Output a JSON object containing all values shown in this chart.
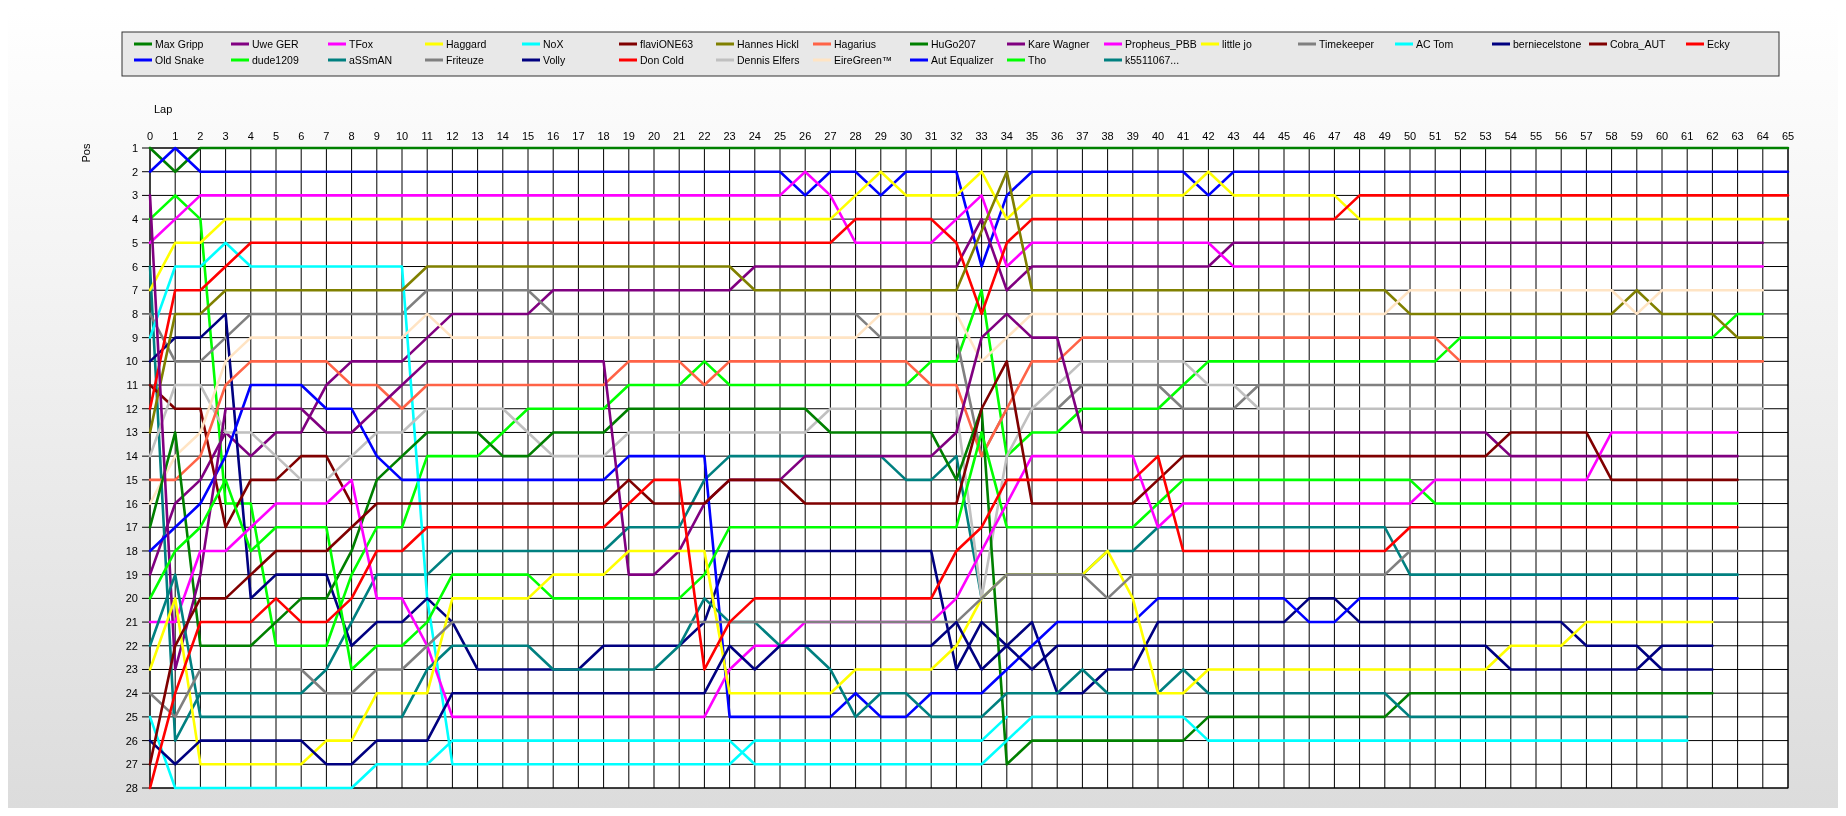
{
  "chart_data": {
    "type": "line",
    "xlabel": "Lap",
    "ylabel": "Pos",
    "xlim": [
      0,
      65
    ],
    "ylim": [
      28,
      1
    ],
    "xticks": [
      0,
      1,
      2,
      3,
      4,
      5,
      6,
      7,
      8,
      9,
      10,
      11,
      12,
      13,
      14,
      15,
      16,
      17,
      18,
      19,
      20,
      21,
      22,
      23,
      24,
      25,
      26,
      27,
      28,
      29,
      30,
      31,
      32,
      33,
      34,
      35,
      36,
      37,
      38,
      39,
      40,
      41,
      42,
      43,
      44,
      45,
      46,
      47,
      48,
      49,
      50,
      51,
      52,
      53,
      54,
      55,
      56,
      57,
      58,
      59,
      60,
      61,
      62,
      63,
      64,
      65
    ],
    "yticks": [
      1,
      2,
      3,
      4,
      5,
      6,
      7,
      8,
      9,
      10,
      11,
      12,
      13,
      14,
      15,
      16,
      17,
      18,
      19,
      20,
      21,
      22,
      23,
      24,
      25,
      26,
      27,
      28
    ],
    "grid": true,
    "legend": "top",
    "series": [
      {
        "name": "Max Gripp",
        "color": "#008000",
        "x": [
          0,
          1,
          2,
          65
        ],
        "values": [
          1,
          2,
          1,
          1
        ]
      },
      {
        "name": "Old Snake",
        "color": "#0000ff",
        "x": [
          0,
          1,
          2,
          25,
          26,
          27,
          28,
          29,
          30,
          32,
          33,
          34,
          35,
          41,
          42,
          43,
          65
        ],
        "values": [
          2,
          1,
          2,
          2,
          3,
          2,
          2,
          3,
          2,
          2,
          6,
          3,
          2,
          2,
          3,
          2,
          2
        ]
      },
      {
        "name": "Uwe GER",
        "color": "#800080",
        "x": [
          0,
          1,
          2,
          3,
          4,
          5,
          6,
          7,
          8,
          10,
          11,
          12,
          15,
          16,
          23,
          24,
          32,
          33,
          34,
          35,
          42,
          43,
          64
        ],
        "values": [
          19,
          16,
          15,
          13,
          14,
          13,
          13,
          11,
          10,
          10,
          9,
          8,
          8,
          7,
          7,
          6,
          6,
          4,
          7,
          6,
          6,
          5,
          5
        ]
      },
      {
        "name": "dude1209",
        "color": "#00ff00",
        "x": [
          0,
          1,
          2,
          3,
          4,
          5,
          7,
          8,
          9,
          10,
          11,
          13,
          14,
          15,
          18,
          19,
          21,
          22,
          23,
          30,
          31,
          32,
          33,
          34,
          35,
          36,
          37,
          40,
          41,
          42,
          51,
          52,
          62,
          63,
          64
        ],
        "values": [
          4,
          3,
          4,
          16,
          16,
          22,
          22,
          19,
          17,
          17,
          14,
          14,
          13,
          12,
          12,
          11,
          11,
          10,
          11,
          11,
          10,
          10,
          7,
          14,
          13,
          13,
          12,
          12,
          11,
          10,
          10,
          9,
          9,
          8,
          8
        ]
      },
      {
        "name": "TFox",
        "color": "#ff00ff",
        "x": [
          0,
          1,
          2,
          25,
          26,
          27,
          28,
          31,
          32,
          33,
          34,
          35,
          42,
          43,
          64
        ],
        "values": [
          5,
          4,
          3,
          3,
          2,
          3,
          5,
          5,
          4,
          3,
          6,
          5,
          5,
          6,
          6
        ]
      },
      {
        "name": "aSSmAN",
        "color": "#008080",
        "x": [
          0,
          1,
          2,
          6,
          7,
          8,
          9,
          11,
          12,
          18,
          19,
          21,
          22,
          23,
          29,
          30,
          31,
          32,
          33,
          34,
          37,
          38,
          39,
          40,
          49,
          50,
          63
        ],
        "values": [
          6,
          26,
          24,
          24,
          23,
          21,
          19,
          19,
          18,
          18,
          17,
          17,
          15,
          14,
          14,
          15,
          15,
          14,
          20,
          19,
          19,
          18,
          18,
          17,
          17,
          19,
          19
        ]
      },
      {
        "name": "Haggard",
        "color": "#ffff00",
        "x": [
          0,
          1,
          2,
          3,
          27,
          28,
          29,
          30,
          32,
          33,
          34,
          35,
          41,
          42,
          43,
          47,
          48,
          65
        ],
        "values": [
          7,
          5,
          5,
          4,
          4,
          3,
          2,
          3,
          3,
          2,
          4,
          3,
          3,
          2,
          3,
          3,
          4,
          4
        ]
      },
      {
        "name": "Friteuze",
        "color": "#808080",
        "x": [
          0,
          1,
          2,
          3,
          4,
          10,
          11,
          15,
          16,
          28,
          29,
          32,
          33,
          34,
          35,
          36,
          37,
          40,
          41,
          43,
          44,
          64
        ],
        "values": [
          8,
          10,
          10,
          9,
          8,
          8,
          7,
          7,
          8,
          8,
          9,
          9,
          14,
          12,
          12,
          12,
          11,
          11,
          12,
          12,
          11,
          11
        ]
      },
      {
        "name": "NoX",
        "color": "#00ffff",
        "x": [
          0,
          1,
          2,
          3,
          4,
          10,
          11,
          12,
          23,
          24,
          33,
          34
        ],
        "values": [
          9,
          6,
          6,
          5,
          6,
          6,
          20,
          27,
          27,
          26,
          26,
          25
        ]
      },
      {
        "name": "Volly",
        "color": "#000080",
        "x": [
          0,
          1,
          2,
          3,
          4,
          5,
          7,
          8,
          9,
          10,
          11,
          12,
          13,
          17,
          18,
          21,
          22,
          23,
          31,
          32,
          33,
          34,
          35,
          36,
          37,
          38,
          39,
          40,
          45,
          46,
          47,
          48,
          56,
          57,
          59,
          60,
          62
        ],
        "values": [
          10,
          9,
          9,
          8,
          20,
          19,
          19,
          22,
          21,
          21,
          20,
          21,
          23,
          23,
          22,
          22,
          21,
          18,
          18,
          23,
          21,
          22,
          21,
          24,
          24,
          23,
          23,
          21,
          21,
          20,
          20,
          21,
          21,
          22,
          22,
          23,
          23
        ]
      },
      {
        "name": "flaviONE63",
        "color": "#800000",
        "x": [
          0,
          1,
          2,
          3,
          4,
          5,
          6,
          7,
          8
        ],
        "values": [
          11,
          12,
          12,
          17,
          15,
          15,
          14,
          14,
          16
        ]
      },
      {
        "name": "Don Cold",
        "color": "#ff0000",
        "x": [
          0,
          1,
          2,
          3,
          4,
          27,
          28,
          31,
          32,
          33,
          34,
          35,
          47,
          48,
          65
        ],
        "values": [
          12,
          7,
          7,
          6,
          5,
          5,
          4,
          4,
          5,
          8,
          5,
          4,
          4,
          3,
          3
        ]
      },
      {
        "name": "Hannes Hickl",
        "color": "#808000",
        "x": [
          0,
          1,
          2,
          3,
          10,
          11,
          23,
          24,
          32,
          34,
          35,
          49,
          50,
          58,
          59,
          60,
          62,
          63,
          64
        ],
        "values": [
          13,
          8,
          8,
          7,
          7,
          6,
          6,
          7,
          7,
          2,
          7,
          7,
          8,
          8,
          7,
          8,
          8,
          9,
          9
        ]
      },
      {
        "name": "Dennis Elfers",
        "color": "#c0c0c0",
        "x": [
          0,
          1,
          2,
          3,
          4,
          5,
          6,
          7,
          8,
          9,
          10,
          11,
          14,
          15,
          16,
          18,
          19,
          26,
          27,
          32,
          33,
          34,
          35,
          36,
          37,
          41,
          42,
          43,
          44,
          64
        ],
        "values": [
          14,
          11,
          11,
          13,
          13,
          14,
          15,
          15,
          14,
          13,
          13,
          12,
          12,
          13,
          14,
          14,
          13,
          13,
          12,
          12,
          20,
          14,
          12,
          11,
          10,
          10,
          11,
          11,
          12,
          12
        ]
      },
      {
        "name": "Hagarius",
        "color": "#ff6347",
        "x": [
          0,
          1,
          2,
          3,
          4,
          7,
          8,
          9,
          10,
          11,
          18,
          19,
          21,
          22,
          23,
          30,
          31,
          32,
          33,
          34,
          35,
          36,
          37,
          51,
          52,
          64
        ],
        "values": [
          15,
          15,
          14,
          11,
          10,
          10,
          11,
          11,
          12,
          11,
          11,
          10,
          10,
          11,
          10,
          10,
          11,
          11,
          14,
          12,
          10,
          10,
          9,
          9,
          10,
          10
        ]
      },
      {
        "name": "EireGreen™",
        "color": "#ffe4c4",
        "x": [
          0,
          1,
          2,
          3,
          4,
          10,
          11,
          12,
          28,
          29,
          32,
          33,
          34,
          35,
          49,
          50,
          58,
          59,
          60,
          64
        ],
        "values": [
          16,
          14,
          13,
          10,
          9,
          9,
          8,
          9,
          9,
          8,
          8,
          10,
          9,
          8,
          8,
          7,
          7,
          8,
          7,
          7
        ]
      },
      {
        "name": "HuGo207",
        "color": "#008000",
        "x": [
          0,
          1,
          2,
          4,
          5,
          6,
          7,
          8,
          9,
          10,
          11,
          13,
          14,
          15,
          16,
          18,
          19,
          26,
          27,
          31,
          32,
          33,
          34,
          35,
          41,
          42,
          49,
          50,
          62
        ],
        "values": [
          17,
          13,
          22,
          22,
          21,
          20,
          20,
          18,
          15,
          14,
          13,
          13,
          14,
          14,
          13,
          13,
          12,
          12,
          13,
          13,
          15,
          12,
          27,
          26,
          26,
          25,
          25,
          24,
          24
        ]
      },
      {
        "name": "Aut Equalizer",
        "color": "#0000ff",
        "x": [
          0,
          1,
          2,
          3,
          4,
          6,
          7,
          8,
          9,
          10,
          18,
          19,
          22,
          23,
          27,
          28,
          29,
          30,
          31,
          33,
          34,
          35,
          36,
          39,
          40,
          45,
          46,
          47,
          48,
          63
        ],
        "values": [
          18,
          17,
          16,
          14,
          11,
          11,
          12,
          12,
          14,
          15,
          15,
          14,
          14,
          25,
          25,
          24,
          25,
          25,
          24,
          24,
          23,
          22,
          21,
          21,
          20,
          20,
          21,
          21,
          20,
          20
        ]
      },
      {
        "name": "Kare Wagner",
        "color": "#800080",
        "x": [
          0,
          1,
          2,
          3,
          6,
          7,
          8,
          9,
          10,
          11,
          18,
          19,
          20,
          21,
          22,
          23,
          25,
          26,
          31,
          32,
          33,
          34,
          35,
          36,
          37,
          53,
          54,
          63
        ],
        "values": [
          3,
          23,
          19,
          12,
          12,
          13,
          13,
          12,
          11,
          10,
          10,
          19,
          19,
          18,
          16,
          15,
          15,
          14,
          14,
          13,
          9,
          8,
          9,
          9,
          13,
          13,
          14,
          14
        ]
      },
      {
        "name": "Tho",
        "color": "#00ff00",
        "x": [
          0,
          1,
          2,
          3,
          4,
          5,
          7,
          8,
          9,
          10,
          11,
          12,
          15,
          16,
          21,
          22,
          23,
          32,
          33,
          34,
          39,
          40,
          41,
          50,
          51,
          63
        ],
        "values": [
          20,
          18,
          17,
          15,
          18,
          17,
          17,
          23,
          22,
          22,
          21,
          19,
          19,
          20,
          20,
          19,
          17,
          17,
          13,
          17,
          17,
          16,
          15,
          15,
          16,
          16
        ]
      },
      {
        "name": "Propheus_PBB",
        "color": "#ff00ff",
        "x": [
          0,
          1,
          2,
          3,
          4,
          5,
          7,
          8,
          9,
          10,
          11,
          12,
          22,
          23,
          24,
          25,
          26,
          31,
          32,
          33,
          34,
          35,
          39,
          40,
          41,
          50,
          51,
          57,
          58,
          63
        ],
        "values": [
          21,
          21,
          18,
          18,
          17,
          16,
          16,
          15,
          20,
          20,
          22,
          25,
          25,
          23,
          22,
          22,
          21,
          21,
          20,
          18,
          16,
          14,
          14,
          17,
          16,
          16,
          15,
          15,
          13,
          13
        ]
      },
      {
        "name": "k5511067...",
        "color": "#008080",
        "x": [
          0,
          1,
          2,
          10,
          11,
          12,
          15,
          16,
          20,
          21,
          22,
          23,
          24,
          25,
          26,
          27,
          28,
          29,
          30,
          31,
          33,
          34,
          36,
          37,
          38,
          40,
          41,
          42,
          49,
          50,
          61
        ],
        "values": [
          22,
          19,
          25,
          25,
          23,
          22,
          22,
          23,
          23,
          22,
          20,
          21,
          21,
          22,
          22,
          23,
          25,
          24,
          24,
          25,
          25,
          24,
          24,
          23,
          24,
          24,
          23,
          24,
          24,
          25,
          25
        ]
      },
      {
        "name": "little jo",
        "color": "#ffff00",
        "x": [
          0,
          1,
          2,
          6,
          7,
          8,
          9,
          11,
          12,
          15,
          16,
          18,
          19,
          22,
          23,
          27,
          28,
          31,
          32,
          33,
          34,
          37,
          38,
          39,
          40,
          41,
          42,
          53,
          54,
          56,
          57,
          62
        ],
        "values": [
          23,
          20,
          27,
          27,
          26,
          26,
          24,
          24,
          20,
          20,
          19,
          19,
          18,
          18,
          24,
          24,
          23,
          23,
          22,
          20,
          19,
          19,
          18,
          20,
          24,
          24,
          23,
          23,
          22,
          22,
          21,
          21
        ]
      },
      {
        "name": "Timekeeper",
        "color": "#808080",
        "x": [
          0,
          1,
          2,
          6,
          7,
          8,
          9,
          10,
          11,
          12,
          32,
          33,
          34,
          37,
          38,
          39,
          49,
          50,
          63
        ],
        "values": [
          24,
          25,
          23,
          23,
          24,
          24,
          23,
          23,
          22,
          21,
          21,
          20,
          19,
          19,
          20,
          19,
          19,
          18,
          18
        ]
      },
      {
        "name": "AC Tom",
        "color": "#00ffff",
        "x": [
          0,
          1,
          8,
          9,
          11,
          12,
          23,
          24,
          33,
          34,
          35,
          41,
          42,
          61
        ],
        "values": [
          25,
          28,
          28,
          27,
          27,
          26,
          26,
          27,
          27,
          26,
          25,
          25,
          26,
          26
        ]
      },
      {
        "name": "berniecelstone",
        "color": "#000080",
        "x": [
          0,
          1,
          2,
          6,
          7,
          8,
          9,
          11,
          12,
          22,
          23,
          24,
          25,
          31,
          32,
          33,
          34,
          35,
          36,
          40,
          53,
          54,
          59,
          60,
          62
        ],
        "values": [
          26,
          27,
          26,
          26,
          27,
          27,
          26,
          26,
          24,
          24,
          22,
          23,
          22,
          22,
          21,
          23,
          22,
          23,
          22,
          22,
          22,
          23,
          23,
          22,
          22
        ]
      },
      {
        "name": "Cobra_AUT",
        "color": "#800000",
        "x": [
          0,
          1,
          2,
          3,
          4,
          5,
          7,
          8,
          9,
          18,
          19,
          20,
          22,
          23,
          25,
          26,
          32,
          33,
          34,
          35,
          39,
          40,
          41,
          53,
          54,
          57,
          58,
          63
        ],
        "values": [
          27,
          22,
          20,
          20,
          19,
          18,
          18,
          17,
          16,
          16,
          15,
          16,
          16,
          15,
          15,
          16,
          16,
          12,
          10,
          16,
          16,
          15,
          14,
          14,
          13,
          13,
          15,
          15
        ]
      },
      {
        "name": "Ecky",
        "color": "#ff0000",
        "x": [
          0,
          1,
          2,
          4,
          5,
          6,
          7,
          8,
          9,
          10,
          11,
          18,
          20,
          21,
          22,
          23,
          24,
          31,
          32,
          33,
          34,
          39,
          40,
          41,
          49,
          50,
          63
        ],
        "values": [
          28,
          24,
          21,
          21,
          20,
          21,
          21,
          20,
          18,
          18,
          17,
          17,
          15,
          15,
          23,
          21,
          20,
          20,
          18,
          17,
          15,
          15,
          14,
          18,
          18,
          17,
          17
        ]
      }
    ]
  }
}
